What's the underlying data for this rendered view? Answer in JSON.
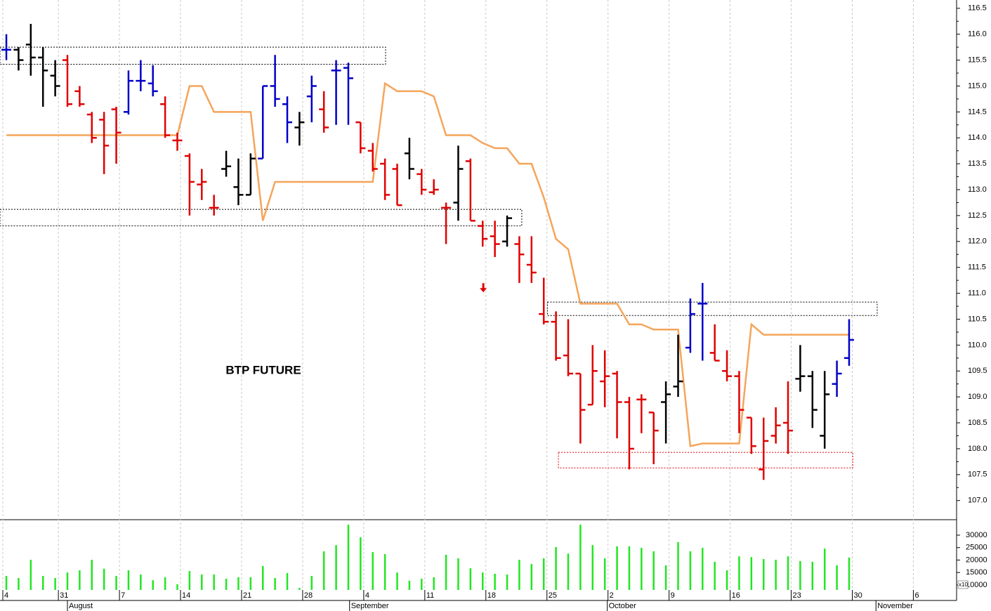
{
  "chart_data": {
    "type": "ohlc",
    "title": "BTP FUTURE",
    "xlim": [
      -0.52,
      77.8
    ],
    "ylim": [
      106.63,
      116.66
    ],
    "yticks": [
      {
        "value": 107,
        "label": "107.0"
      },
      107.5,
      {
        "value": 108,
        "label": "108.0"
      },
      108.5,
      {
        "value": 109,
        "label": "109.0"
      },
      109.5,
      {
        "value": 110,
        "label": "110.0"
      },
      110.5,
      {
        "value": 111,
        "label": "111.0"
      },
      111.5,
      {
        "value": 112,
        "label": "112.0"
      },
      112.5,
      {
        "value": 113,
        "label": "113.0"
      },
      113.5,
      {
        "value": 114,
        "label": "114.0"
      },
      114.5,
      {
        "value": 115,
        "label": "115.0"
      },
      115.5,
      {
        "value": 116,
        "label": "116.0"
      },
      116.5
    ],
    "xticks": [
      {
        "value": -0.29,
        "label": "4"
      },
      {
        "value": 4.26,
        "label": "31"
      },
      {
        "value": 9.26,
        "label": "7"
      },
      {
        "value": 14.26,
        "label": "14"
      },
      {
        "value": 19.26,
        "label": "21"
      },
      {
        "value": 24.26,
        "label": "28"
      },
      {
        "value": 29.26,
        "label": "4"
      },
      {
        "value": 34.26,
        "label": "11"
      },
      {
        "value": 39.26,
        "label": "18"
      },
      {
        "value": 44.26,
        "label": "25"
      },
      {
        "value": 49.26,
        "label": "2"
      },
      {
        "value": 54.26,
        "label": "9"
      },
      {
        "value": 59.26,
        "label": "16"
      },
      {
        "value": 64.26,
        "label": "23"
      },
      {
        "value": 69.26,
        "label": "30"
      },
      {
        "value": 74.26,
        "label": "6"
      }
    ],
    "month_ticks": [
      {
        "value": 5.0,
        "label": "August"
      },
      {
        "value": 28.1,
        "label": "September"
      },
      {
        "value": 49.2,
        "label": "October"
      },
      {
        "value": 71.2,
        "label": "November"
      }
    ],
    "grid": true,
    "bars": {
      "x": [
        0,
        1,
        2,
        3,
        4,
        5,
        6,
        7,
        8,
        9,
        10,
        11,
        12,
        13,
        14,
        15,
        16,
        17,
        18,
        19,
        20,
        21,
        22,
        23,
        24,
        25,
        26,
        27,
        28,
        29,
        30,
        31,
        32,
        33,
        34,
        35,
        36,
        37,
        38,
        39,
        40,
        41,
        42,
        43,
        44,
        45,
        46,
        47,
        48,
        49,
        50,
        51,
        52,
        53,
        54,
        55,
        56,
        57,
        58,
        59,
        60,
        61,
        62,
        63,
        64,
        65,
        66,
        67,
        68,
        69
      ],
      "open": [
        115.7,
        115.7,
        115.8,
        115.55,
        115.2,
        115.5,
        114.9,
        114.45,
        114.35,
        114.55,
        114.5,
        115.1,
        115.05,
        114.65,
        113.95,
        113.65,
        113.1,
        112.65,
        113.4,
        113.05,
        112.9,
        113.6,
        115.0,
        114.65,
        114.2,
        114.8,
        114.55,
        115.3,
        115.35,
        114.3,
        113.75,
        113.5,
        113.4,
        113.7,
        113.3,
        112.95,
        112.65,
        112.75,
        113.55,
        112.3,
        112.1,
        112.0,
        111.95,
        111.55,
        110.6,
        110.45,
        109.8,
        109.45,
        108.85,
        109.3,
        109.45,
        108.9,
        108.95,
        108.7,
        108.9,
        109.2,
        109.95,
        110.8,
        109.85,
        109.5,
        109.4,
        108.6,
        107.6,
        108.25,
        108.5,
        109.35,
        109.4,
        108.25,
        109.25,
        109.75
      ],
      "high": [
        116.0,
        115.75,
        116.2,
        115.75,
        115.5,
        115.6,
        115.0,
        114.5,
        114.5,
        114.6,
        115.3,
        115.5,
        115.4,
        114.8,
        114.1,
        113.7,
        113.4,
        112.9,
        113.75,
        113.6,
        113.7,
        115.0,
        115.6,
        114.8,
        114.5,
        115.2,
        114.9,
        115.5,
        115.45,
        114.3,
        113.9,
        113.6,
        113.5,
        114.0,
        113.4,
        113.2,
        112.75,
        113.85,
        113.6,
        112.4,
        112.4,
        112.5,
        112.1,
        112.1,
        111.3,
        110.65,
        110.5,
        109.45,
        110.0,
        109.9,
        109.5,
        109.0,
        109.05,
        108.7,
        109.3,
        110.2,
        110.9,
        111.2,
        110.4,
        109.9,
        109.5,
        108.6,
        108.6,
        108.8,
        109.3,
        110.0,
        109.5,
        109.5,
        109.7,
        110.5
      ],
      "low": [
        115.5,
        115.3,
        115.2,
        114.6,
        114.8,
        114.6,
        114.6,
        113.9,
        113.3,
        113.5,
        114.45,
        114.9,
        114.8,
        114.0,
        113.75,
        112.5,
        112.8,
        112.5,
        113.25,
        112.7,
        112.9,
        113.6,
        114.6,
        113.9,
        113.85,
        114.3,
        114.1,
        114.25,
        114.25,
        113.7,
        113.35,
        112.8,
        112.7,
        113.2,
        112.9,
        112.9,
        111.95,
        112.4,
        112.4,
        111.9,
        111.7,
        111.9,
        111.2,
        111.2,
        110.4,
        109.7,
        109.4,
        108.1,
        108.85,
        108.8,
        108.2,
        107.6,
        108.3,
        107.7,
        108.1,
        109.0,
        109.85,
        109.7,
        109.7,
        109.3,
        108.3,
        107.9,
        107.4,
        108.1,
        107.9,
        109.1,
        108.4,
        108.0,
        109.0,
        109.6
      ],
      "close": [
        115.7,
        115.5,
        115.55,
        115.3,
        115.0,
        114.65,
        114.65,
        114.0,
        113.85,
        114.1,
        115.1,
        115.1,
        114.9,
        114.05,
        113.95,
        113.15,
        113.15,
        112.65,
        113.45,
        112.9,
        113.6,
        115.0,
        114.75,
        114.3,
        114.3,
        115.0,
        114.2,
        115.3,
        115.15,
        113.8,
        113.4,
        112.9,
        112.7,
        113.4,
        113.0,
        113.0,
        112.65,
        113.4,
        112.4,
        112.05,
        111.95,
        112.45,
        111.75,
        111.4,
        110.45,
        109.75,
        109.45,
        108.75,
        109.5,
        109.4,
        108.9,
        108.0,
        108.95,
        108.35,
        109.05,
        109.3,
        110.6,
        110.8,
        109.7,
        109.4,
        108.75,
        108.05,
        108.15,
        108.45,
        108.35,
        109.4,
        108.75,
        109.05,
        109.45,
        110.1
      ],
      "color": [
        "#0000c8",
        "#000000",
        "#000000",
        "#000000",
        "#000000",
        "#e00000",
        "#e00000",
        "#e00000",
        "#e00000",
        "#e00000",
        "#0000c8",
        "#0000c8",
        "#0000c8",
        "#e00000",
        "#e00000",
        "#e00000",
        "#e00000",
        "#e00000",
        "#000000",
        "#000000",
        "#000000",
        "#0000c8",
        "#0000c8",
        "#0000c8",
        "#000000",
        "#0000c8",
        "#e00000",
        "#0000c8",
        "#0000c8",
        "#e00000",
        "#e00000",
        "#e00000",
        "#e00000",
        "#000000",
        "#e00000",
        "#e00000",
        "#e00000",
        "#000000",
        "#e00000",
        "#e00000",
        "#e00000",
        "#000000",
        "#e00000",
        "#e00000",
        "#e00000",
        "#e00000",
        "#e00000",
        "#e00000",
        "#e00000",
        "#e00000",
        "#e00000",
        "#e00000",
        "#e00000",
        "#e00000",
        "#000000",
        "#000000",
        "#0000c8",
        "#0000c8",
        "#e00000",
        "#e00000",
        "#e00000",
        "#e00000",
        "#e00000",
        "#e00000",
        "#e00000",
        "#000000",
        "#000000",
        "#000000",
        "#0000c8",
        "#0000c8"
      ]
    },
    "stop_line": {
      "color": "#f5a55a",
      "values": [
        114.05,
        114.05,
        114.05,
        114.05,
        114.05,
        114.05,
        114.05,
        114.05,
        114.05,
        114.05,
        114.05,
        114.05,
        114.05,
        114.05,
        114.05,
        115.0,
        115.0,
        114.5,
        114.5,
        114.5,
        114.5,
        112.4,
        113.15,
        113.15,
        113.15,
        113.15,
        113.15,
        113.15,
        113.15,
        113.15,
        113.15,
        115.05,
        114.9,
        114.9,
        114.9,
        114.8,
        114.05,
        114.05,
        114.05,
        113.9,
        113.8,
        113.8,
        113.5,
        113.5,
        112.85,
        112.05,
        111.85,
        110.8,
        110.8,
        110.8,
        110.8,
        110.4,
        110.4,
        110.3,
        110.3,
        110.3,
        108.05,
        108.1,
        108.1,
        108.1,
        108.1,
        110.4,
        110.2,
        110.2,
        110.2,
        110.2,
        110.2,
        110.2,
        110.2,
        110.2
      ]
    },
    "zones": [
      {
        "from": -0.52,
        "to": 31.05,
        "low": 115.42,
        "high": 115.75,
        "color": "#000000"
      },
      {
        "from": -0.52,
        "to": 42.2,
        "low": 112.3,
        "high": 112.62,
        "color": "#000000"
      },
      {
        "from": 44.3,
        "to": 71.3,
        "low": 110.57,
        "high": 110.83,
        "color": "#000000"
      },
      {
        "from": 45.2,
        "to": 69.3,
        "low": 107.63,
        "high": 107.93,
        "color": "#e00000"
      }
    ],
    "signal": {
      "x": 39.05,
      "price": 111.1,
      "color": "#e00000"
    },
    "volume": {
      "color": "#22e622",
      "ylim": [
        8000,
        36200
      ],
      "yticks": [
        10000,
        15000,
        20000,
        25000,
        30000
      ],
      "multiplier_label": "x10",
      "values": [
        13600,
        12800,
        20100,
        13600,
        12800,
        15000,
        15900,
        20100,
        16500,
        13600,
        15900,
        14200,
        11900,
        13100,
        10300,
        15600,
        14200,
        14200,
        12500,
        13100,
        13100,
        17600,
        12800,
        14800,
        8800,
        13600,
        23500,
        26000,
        34200,
        29100,
        23200,
        22400,
        15000,
        11700,
        12500,
        13100,
        22100,
        20700,
        16700,
        15000,
        14500,
        14200,
        20100,
        18400,
        20700,
        25200,
        22600,
        34200,
        26000,
        20700,
        25500,
        25500,
        24900,
        23500,
        17900,
        27200,
        23500,
        24900,
        19300,
        15900,
        21500,
        21200,
        20400,
        20100,
        21500,
        19600,
        19300,
        24600,
        17900,
        21000
      ]
    }
  }
}
